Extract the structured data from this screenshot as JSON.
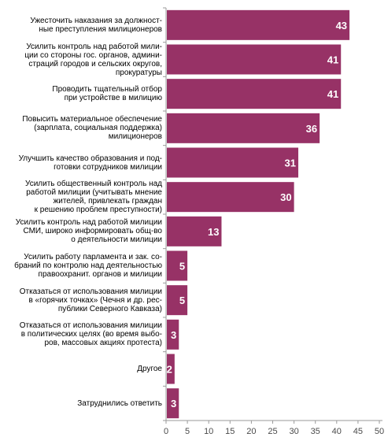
{
  "chart_data": {
    "type": "bar",
    "orientation": "horizontal",
    "title": "",
    "xlabel": "",
    "ylabel": "",
    "xlim": [
      0,
      50
    ],
    "x_ticks": [
      0,
      5,
      10,
      15,
      20,
      25,
      30,
      35,
      40,
      45,
      50
    ],
    "grid": false,
    "legend": "none",
    "bar_color": "#973266",
    "categories": [
      "Ужесточить наказания за должност-\nные преступления милиционеров",
      "Усилить контроль над работой мили-\nции со стороны гос. органов, админи-\nстраций городов и сельских округов,\nпрокуратуры",
      "Проводить тщательный отбор\nпри устройстве в милицию",
      "Повысить материальное обеспечение\n(зарплата, социальная поддержка)\nмилиционеров",
      "Улучшить качество образования и под-\nготовки сотрудников милиции",
      "Усилить общественный контроль над\nработой милиции (учитывать мнение\nжителей,  привлекать граждан\nк решению проблем преступности)",
      "Усилить контроль над работой милиции\nСМИ, широко информировать общ-во\nо деятельности милиции",
      "Усилить работу парламента и зак. со-\nбраний по контролю над деятельностью\nправоохранит. органов и милиции",
      "Отказаться от использования милиции\nв «горячих точках» (Чечня и др. рес-\nпублики Северного Кавказа)",
      "Отказаться от использования милиции\nв политических целях (во время выбо-\nров, массовых акциях протеста)",
      "Другое",
      "Затруднились ответить"
    ],
    "values": [
      43,
      41,
      41,
      36,
      31,
      30,
      13,
      5,
      5,
      3,
      2,
      3
    ]
  }
}
